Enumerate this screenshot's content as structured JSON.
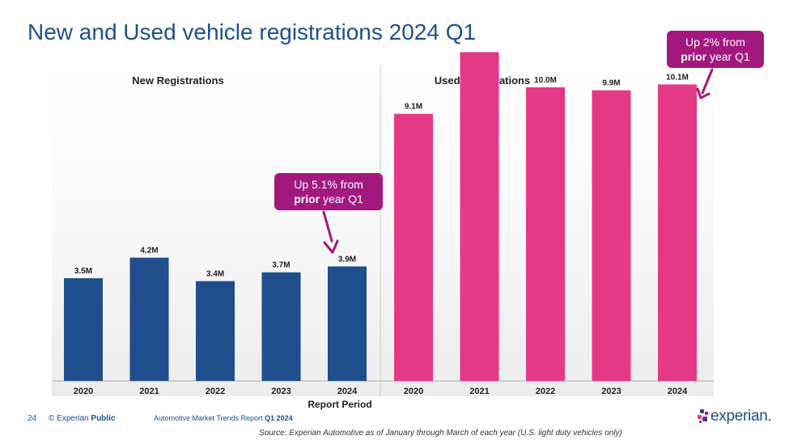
{
  "title": "New and Used vehicle registrations 2024 Q1",
  "colors": {
    "new": "#1f4e8c",
    "used": "#e43a86",
    "callout": "#a3187f",
    "title": "#1d4f91"
  },
  "callouts": {
    "new": {
      "line1": "Up 5.1% from",
      "bold": "prior",
      "rest": " year Q1"
    },
    "used": {
      "line1": "Up 2% from",
      "bold": "prior",
      "rest": " year Q1"
    }
  },
  "footer": {
    "page_number": "24",
    "copyright": "© Experian",
    "classification": "Public",
    "report": "Automotive Market Trends Report",
    "report_period": "Q1 2024",
    "source": "Source: Experian Automotive as of January through March of each year (U.S. light duty vehicles only)",
    "logo": "experian."
  },
  "chart_data": [
    {
      "type": "bar",
      "title": "New Registrations",
      "categories": [
        "2020",
        "2021",
        "2022",
        "2023",
        "2024"
      ],
      "values": [
        3.5,
        4.2,
        3.4,
        3.7,
        3.9
      ],
      "labels": [
        "3.5M",
        "4.2M",
        "3.4M",
        "3.7M",
        "3.9M"
      ],
      "xlabel": "Report Period",
      "color": "#1f4e8c",
      "grid": false
    },
    {
      "type": "bar",
      "title": "Used Registrations",
      "categories": [
        "2020",
        "2021",
        "2022",
        "2023",
        "2024"
      ],
      "values": [
        9.1,
        11.2,
        10.0,
        9.9,
        10.1
      ],
      "labels": [
        "9.1M",
        "",
        "10.0M",
        "9.9M",
        "10.1M"
      ],
      "xlabel": "Report Period",
      "color": "#e43a86",
      "grid": false
    }
  ]
}
